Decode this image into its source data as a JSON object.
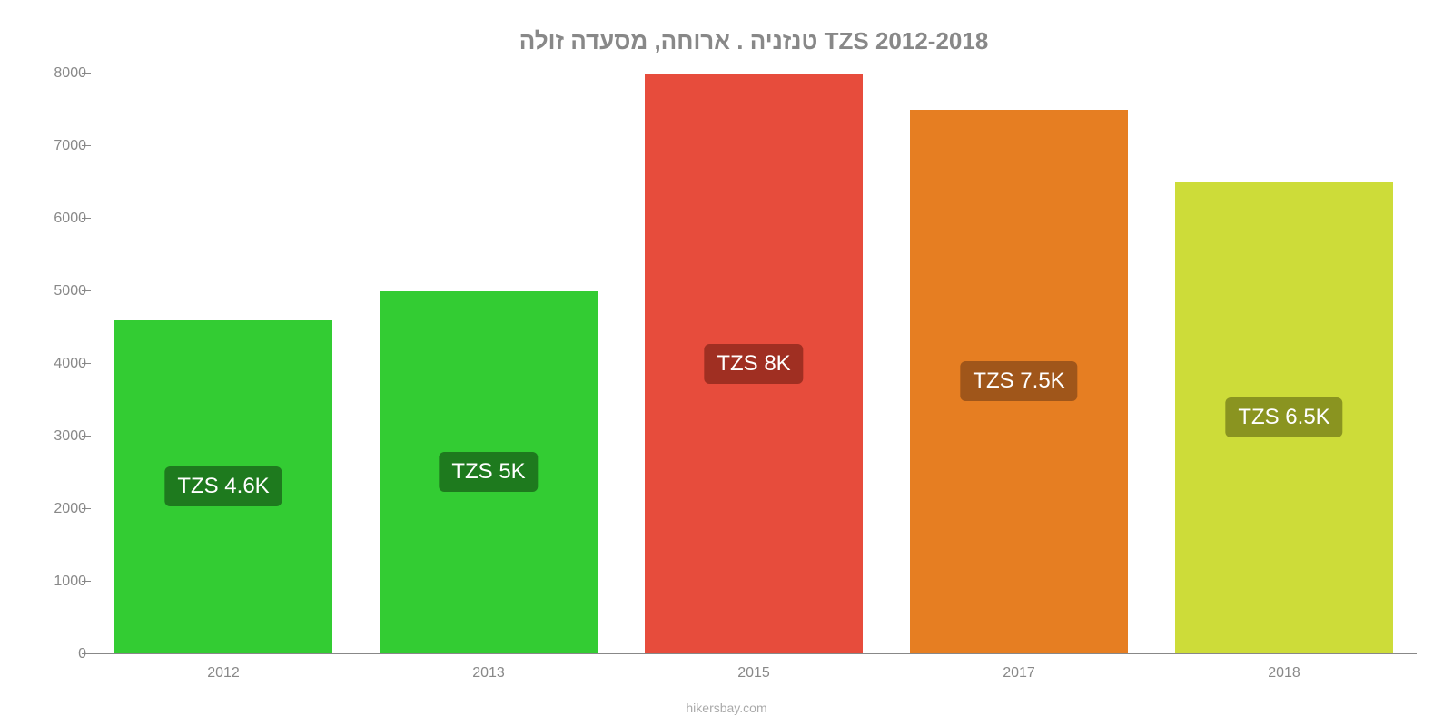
{
  "chart": {
    "type": "bar",
    "title": "טנזניה . ארוחה, מסעדה זולה TZS 2012-2018",
    "title_color": "#888888",
    "title_fontsize": 26,
    "source": "hikersbay.com",
    "source_color": "#aaaaaa",
    "background_color": "#ffffff",
    "axis_color": "#888888",
    "label_fontsize": 16,
    "ylim": [
      0,
      8000
    ],
    "ytick_step": 1000,
    "yticks": [
      0,
      1000,
      2000,
      3000,
      4000,
      5000,
      6000,
      7000,
      8000
    ],
    "categories": [
      "2012",
      "2013",
      "2015",
      "2017",
      "2018"
    ],
    "values": [
      4600,
      5000,
      8000,
      7500,
      6500
    ],
    "bar_colors": [
      "#33cc33",
      "#33cc33",
      "#e74c3c",
      "#e67e22",
      "#cddc39"
    ],
    "bar_label_bg": [
      "#1e7a1e",
      "#1e7a1e",
      "#a02f22",
      "#a0561a",
      "#8a9420"
    ],
    "bar_label_text_color": "#ffffff",
    "bar_labels": [
      "TZS 4.6K",
      "TZS 5K",
      "TZS 8K",
      "TZS 7.5K",
      "TZS 6.5K"
    ],
    "bar_label_fontsize": 24,
    "bar_width_pct": 82
  }
}
